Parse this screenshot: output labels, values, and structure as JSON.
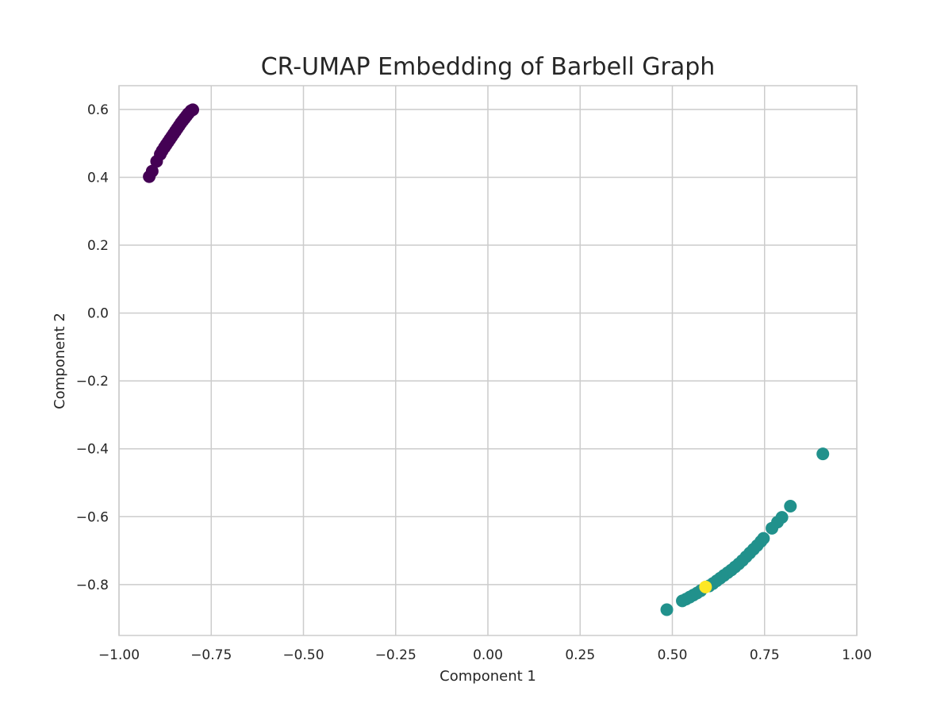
{
  "chart_data": {
    "type": "scatter",
    "title": "CR-UMAP Embedding of Barbell Graph",
    "xlabel": "Component 1",
    "ylabel": "Component 2",
    "xlim": [
      -1.0,
      1.0
    ],
    "ylim": [
      -0.95,
      0.67
    ],
    "xticks": [
      -1.0,
      -0.75,
      -0.5,
      -0.25,
      0.0,
      0.25,
      0.5,
      0.75,
      1.0
    ],
    "xtick_labels": [
      "−1.00",
      "−0.75",
      "−0.50",
      "−0.25",
      "0.00",
      "0.25",
      "0.50",
      "0.75",
      "1.00"
    ],
    "yticks": [
      -0.8,
      -0.6,
      -0.4,
      -0.2,
      0.0,
      0.2,
      0.4,
      0.6
    ],
    "ytick_labels": [
      "−0.8",
      "−0.6",
      "−0.4",
      "−0.2",
      "0.0",
      "0.2",
      "0.4",
      "0.6"
    ],
    "grid": true,
    "colormap": "viridis",
    "series": [
      {
        "color": "#440154",
        "points": [
          [
            -0.918,
            0.402
          ],
          [
            -0.91,
            0.418
          ],
          [
            -0.898,
            0.447
          ],
          [
            -0.888,
            0.468
          ],
          [
            -0.883,
            0.478
          ],
          [
            -0.877,
            0.488
          ],
          [
            -0.872,
            0.496
          ],
          [
            -0.867,
            0.504
          ],
          [
            -0.862,
            0.512
          ],
          [
            -0.857,
            0.52
          ],
          [
            -0.852,
            0.528
          ],
          [
            -0.847,
            0.536
          ],
          [
            -0.842,
            0.544
          ],
          [
            -0.837,
            0.552
          ],
          [
            -0.832,
            0.56
          ],
          [
            -0.827,
            0.567
          ],
          [
            -0.822,
            0.574
          ],
          [
            -0.817,
            0.581
          ],
          [
            -0.812,
            0.588
          ],
          [
            -0.805,
            0.596
          ],
          [
            -0.8,
            0.599
          ]
        ]
      },
      {
        "color": "#21918c",
        "points": [
          [
            0.485,
            -0.874
          ],
          [
            0.527,
            -0.848
          ],
          [
            0.537,
            -0.843
          ],
          [
            0.547,
            -0.837
          ],
          [
            0.557,
            -0.831
          ],
          [
            0.567,
            -0.825
          ],
          [
            0.577,
            -0.818
          ],
          [
            0.6,
            -0.804
          ],
          [
            0.61,
            -0.797
          ],
          [
            0.62,
            -0.789
          ],
          [
            0.63,
            -0.781
          ],
          [
            0.64,
            -0.773
          ],
          [
            0.65,
            -0.765
          ],
          [
            0.66,
            -0.757
          ],
          [
            0.67,
            -0.748
          ],
          [
            0.68,
            -0.739
          ],
          [
            0.69,
            -0.729
          ],
          [
            0.7,
            -0.718
          ],
          [
            0.71,
            -0.707
          ],
          [
            0.72,
            -0.696
          ],
          [
            0.73,
            -0.685
          ],
          [
            0.74,
            -0.673
          ],
          [
            0.747,
            -0.664
          ],
          [
            0.77,
            -0.634
          ],
          [
            0.785,
            -0.616
          ],
          [
            0.797,
            -0.602
          ],
          [
            0.82,
            -0.569
          ],
          [
            0.908,
            -0.415
          ]
        ]
      },
      {
        "color": "#fde725",
        "points": [
          [
            0.59,
            -0.807
          ]
        ]
      }
    ]
  }
}
